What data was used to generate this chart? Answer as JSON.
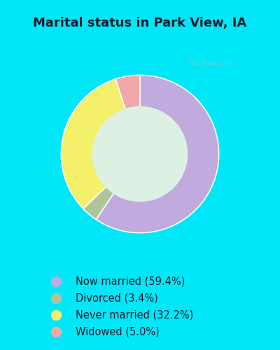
{
  "title": "Marital status in Park View, IA",
  "title_fontsize": 13,
  "title_fontweight": "bold",
  "title_color": "#1a1a2e",
  "bg_color": "#00e8f8",
  "chart_bg": "#ddf0e4",
  "slices": [
    {
      "label": "Now married (59.4%)",
      "value": 59.4,
      "color": "#c0aade"
    },
    {
      "label": "Divorced (3.4%)",
      "value": 3.4,
      "color": "#b0c49a"
    },
    {
      "label": "Never married (32.2%)",
      "value": 32.2,
      "color": "#f5f06a"
    },
    {
      "label": "Widowed (5.0%)",
      "value": 5.0,
      "color": "#f0a8a8"
    }
  ],
  "donut_width": 0.4,
  "start_angle": 90,
  "legend_fontsize": 10.5,
  "legend_dot_size": 100,
  "watermark": "City-Data.com"
}
